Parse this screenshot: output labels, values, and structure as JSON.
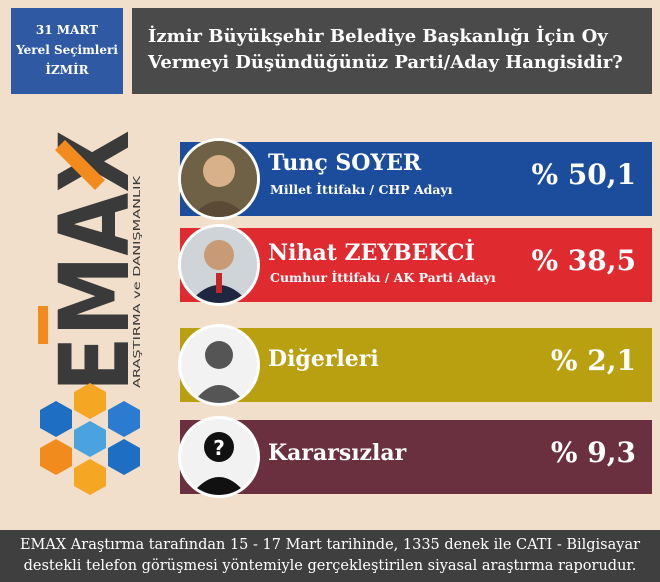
{
  "header": {
    "date_lines": [
      "31 MART",
      "Yerel Seçimleri",
      "İZMİR"
    ],
    "question": "İzmir Büyükşehir Belediye Başkanlığı İçin Oy Vermeyi Düşündüğünüz Parti/Aday Hangisidir?"
  },
  "logo": {
    "brand": "EMAX",
    "tagline": "ARAŞTIRMA ve DANIŞMANLIK"
  },
  "colors": {
    "soyer": "#1b4d9c",
    "zeybekci": "#df2a2f",
    "digerleri": "#b8a010",
    "kararsizlar": "#6b3040"
  },
  "chart_data": {
    "type": "bar",
    "categories": [
      "Tunç SOYER",
      "Nihat ZEYBEKCİ",
      "Diğerleri",
      "Kararsızlar"
    ],
    "values": [
      50.1,
      38.5,
      2.1,
      9.3
    ],
    "value_labels": [
      "% 50,1",
      "% 38,5",
      "% 2,1",
      "% 9,3"
    ],
    "subtitles": [
      "Millet İttifakı / CHP Adayı",
      "Cumhur İttifakı / AK Parti Adayı",
      "",
      ""
    ],
    "title": "İzmir Büyükşehir Belediye Başkanlığı İçin Oy Vermeyi Düşündüğünüz Parti/Aday Hangisidir?"
  },
  "footer": {
    "line1": "EMAX Araştırma tarafından 15 - 17 Mart tarihinde, 1335 denek ile CATI - Bilgisayar",
    "line2": "destekli telefon görüşmesi yöntemiyle gerçekleştirilen siyasal araştırma raporudur."
  }
}
